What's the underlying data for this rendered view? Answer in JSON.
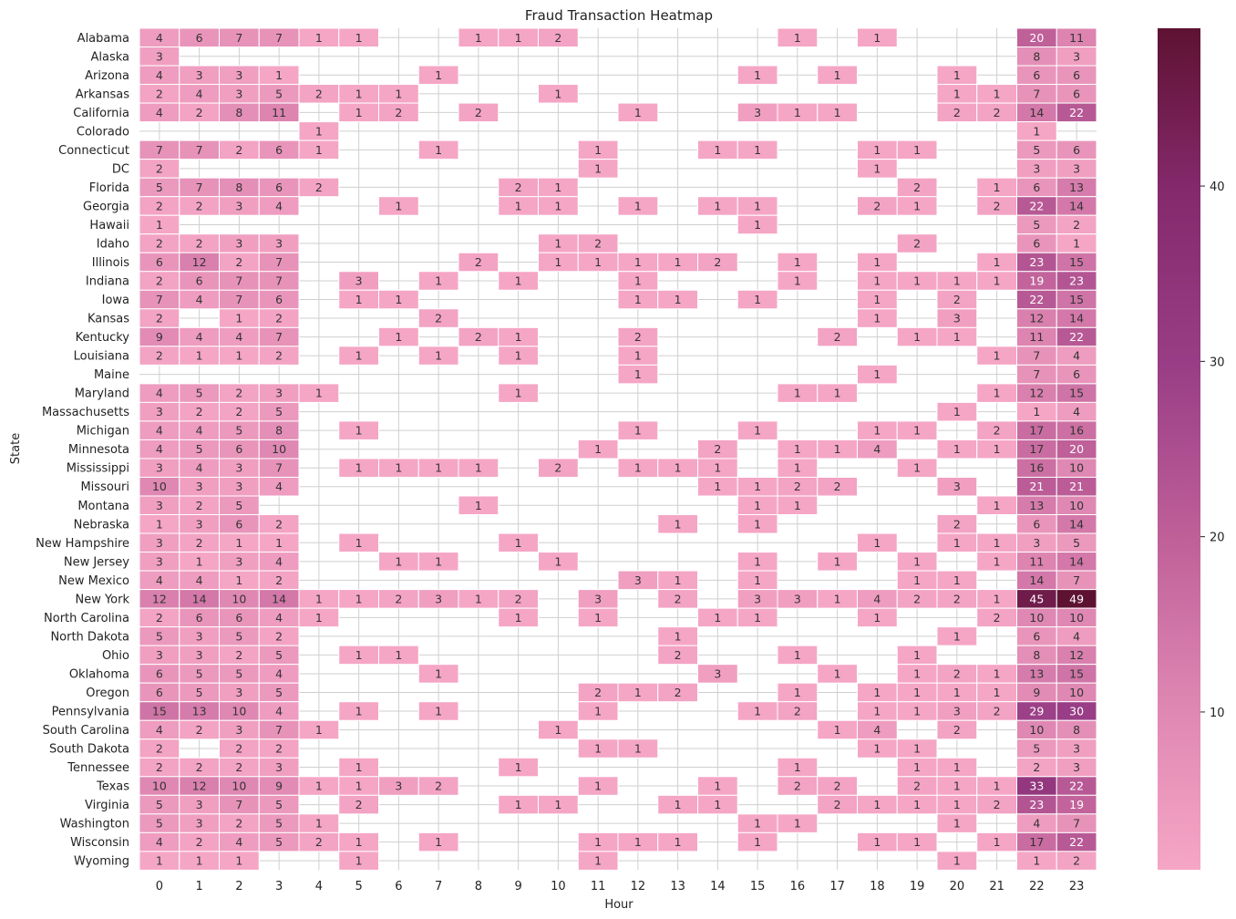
{
  "chart_data": {
    "type": "heatmap",
    "title": "Fraud Transaction Heatmap",
    "xlabel": "Hour",
    "ylabel": "State",
    "x_categories": [
      "0",
      "1",
      "2",
      "3",
      "4",
      "5",
      "6",
      "7",
      "8",
      "9",
      "10",
      "11",
      "12",
      "13",
      "14",
      "15",
      "16",
      "17",
      "18",
      "19",
      "20",
      "21",
      "22",
      "23"
    ],
    "y_categories": [
      "Alabama",
      "Alaska",
      "Arizona",
      "Arkansas",
      "California",
      "Colorado",
      "Connecticut",
      "DC",
      "Florida",
      "Georgia",
      "Hawaii",
      "Idaho",
      "Illinois",
      "Indiana",
      "Iowa",
      "Kansas",
      "Kentucky",
      "Louisiana",
      "Maine",
      "Maryland",
      "Massachusetts",
      "Michigan",
      "Minnesota",
      "Mississippi",
      "Missouri",
      "Montana",
      "Nebraska",
      "New Hampshire",
      "New Jersey",
      "New Mexico",
      "New York",
      "North Carolina",
      "North Dakota",
      "Ohio",
      "Oklahoma",
      "Oregon",
      "Pennsylvania",
      "South Carolina",
      "South Dakota",
      "Tennessee",
      "Texas",
      "Virginia",
      "Washington",
      "Wisconsin",
      "Wyoming"
    ],
    "values": [
      [
        4,
        6,
        7,
        7,
        1,
        1,
        null,
        null,
        1,
        1,
        2,
        null,
        null,
        null,
        null,
        null,
        1,
        null,
        1,
        null,
        null,
        null,
        20,
        11
      ],
      [
        3,
        null,
        null,
        null,
        null,
        null,
        null,
        null,
        null,
        null,
        null,
        null,
        null,
        null,
        null,
        null,
        null,
        null,
        null,
        null,
        null,
        null,
        8,
        3
      ],
      [
        4,
        3,
        3,
        1,
        null,
        null,
        null,
        1,
        null,
        null,
        null,
        null,
        null,
        null,
        null,
        1,
        null,
        1,
        null,
        null,
        1,
        null,
        6,
        6
      ],
      [
        2,
        4,
        3,
        5,
        2,
        1,
        1,
        null,
        null,
        null,
        1,
        null,
        null,
        null,
        null,
        null,
        null,
        null,
        null,
        null,
        1,
        1,
        7,
        6
      ],
      [
        4,
        2,
        8,
        11,
        null,
        1,
        2,
        null,
        2,
        null,
        null,
        null,
        1,
        null,
        null,
        3,
        1,
        1,
        null,
        null,
        2,
        2,
        14,
        22
      ],
      [
        null,
        null,
        null,
        null,
        1,
        null,
        null,
        null,
        null,
        null,
        null,
        null,
        null,
        null,
        null,
        null,
        null,
        null,
        null,
        null,
        null,
        null,
        1,
        null
      ],
      [
        7,
        7,
        2,
        6,
        1,
        null,
        null,
        1,
        null,
        null,
        null,
        1,
        null,
        null,
        1,
        1,
        null,
        null,
        1,
        1,
        null,
        null,
        5,
        6
      ],
      [
        2,
        null,
        null,
        null,
        null,
        null,
        null,
        null,
        null,
        null,
        null,
        1,
        null,
        null,
        null,
        null,
        null,
        null,
        1,
        null,
        null,
        null,
        3,
        3
      ],
      [
        5,
        7,
        8,
        6,
        2,
        null,
        null,
        null,
        null,
        2,
        1,
        null,
        null,
        null,
        null,
        null,
        null,
        null,
        null,
        2,
        null,
        1,
        6,
        13
      ],
      [
        2,
        2,
        3,
        4,
        null,
        null,
        1,
        null,
        null,
        1,
        1,
        null,
        1,
        null,
        1,
        1,
        null,
        null,
        2,
        1,
        null,
        2,
        22,
        14
      ],
      [
        1,
        null,
        null,
        null,
        null,
        null,
        null,
        null,
        null,
        null,
        null,
        null,
        null,
        null,
        null,
        1,
        null,
        null,
        null,
        null,
        null,
        null,
        5,
        2
      ],
      [
        2,
        2,
        3,
        3,
        null,
        null,
        null,
        null,
        null,
        null,
        1,
        2,
        null,
        null,
        null,
        null,
        null,
        null,
        null,
        2,
        null,
        null,
        6,
        1
      ],
      [
        6,
        12,
        2,
        7,
        null,
        null,
        null,
        null,
        2,
        null,
        1,
        1,
        1,
        1,
        2,
        null,
        1,
        null,
        1,
        null,
        null,
        1,
        23,
        15
      ],
      [
        2,
        6,
        7,
        7,
        null,
        3,
        null,
        1,
        null,
        1,
        null,
        null,
        1,
        null,
        null,
        null,
        1,
        null,
        1,
        1,
        1,
        1,
        19,
        23
      ],
      [
        7,
        4,
        7,
        6,
        null,
        1,
        1,
        null,
        null,
        null,
        null,
        null,
        1,
        1,
        null,
        1,
        null,
        null,
        1,
        null,
        2,
        null,
        22,
        15
      ],
      [
        2,
        null,
        1,
        2,
        null,
        null,
        null,
        2,
        null,
        null,
        null,
        null,
        null,
        null,
        null,
        null,
        null,
        null,
        1,
        null,
        3,
        null,
        12,
        14
      ],
      [
        9,
        4,
        4,
        7,
        null,
        null,
        1,
        null,
        2,
        1,
        null,
        null,
        2,
        null,
        null,
        null,
        null,
        2,
        null,
        1,
        1,
        null,
        11,
        22
      ],
      [
        2,
        1,
        1,
        2,
        null,
        1,
        null,
        1,
        null,
        1,
        null,
        null,
        1,
        null,
        null,
        null,
        null,
        null,
        null,
        null,
        null,
        1,
        7,
        4
      ],
      [
        null,
        null,
        null,
        null,
        null,
        null,
        null,
        null,
        null,
        null,
        null,
        null,
        1,
        null,
        null,
        null,
        null,
        null,
        1,
        null,
        null,
        null,
        7,
        6
      ],
      [
        4,
        5,
        2,
        3,
        1,
        null,
        null,
        null,
        null,
        1,
        null,
        null,
        null,
        null,
        null,
        null,
        1,
        1,
        null,
        null,
        null,
        1,
        12,
        15
      ],
      [
        3,
        2,
        2,
        5,
        null,
        null,
        null,
        null,
        null,
        null,
        null,
        null,
        null,
        null,
        null,
        null,
        null,
        null,
        null,
        null,
        1,
        null,
        1,
        4
      ],
      [
        4,
        4,
        5,
        8,
        null,
        1,
        null,
        null,
        null,
        null,
        null,
        null,
        1,
        null,
        null,
        1,
        null,
        null,
        1,
        1,
        null,
        2,
        17,
        16
      ],
      [
        4,
        5,
        6,
        10,
        null,
        null,
        null,
        null,
        null,
        null,
        null,
        1,
        null,
        null,
        2,
        null,
        1,
        1,
        4,
        null,
        1,
        1,
        17,
        20
      ],
      [
        3,
        4,
        3,
        7,
        null,
        1,
        1,
        1,
        1,
        null,
        2,
        null,
        1,
        1,
        1,
        null,
        1,
        null,
        null,
        1,
        null,
        null,
        16,
        10
      ],
      [
        10,
        3,
        3,
        4,
        null,
        null,
        null,
        null,
        null,
        null,
        null,
        null,
        null,
        null,
        1,
        1,
        2,
        2,
        null,
        null,
        3,
        null,
        21,
        21
      ],
      [
        3,
        2,
        5,
        null,
        null,
        null,
        null,
        null,
        1,
        null,
        null,
        null,
        null,
        null,
        null,
        1,
        1,
        null,
        null,
        null,
        null,
        1,
        13,
        10
      ],
      [
        1,
        3,
        6,
        2,
        null,
        null,
        null,
        null,
        null,
        null,
        null,
        null,
        null,
        1,
        null,
        1,
        null,
        null,
        null,
        null,
        2,
        null,
        6,
        14
      ],
      [
        3,
        2,
        1,
        1,
        null,
        1,
        null,
        null,
        null,
        1,
        null,
        null,
        null,
        null,
        null,
        null,
        null,
        null,
        1,
        null,
        1,
        1,
        3,
        5
      ],
      [
        3,
        1,
        3,
        4,
        null,
        null,
        1,
        1,
        null,
        null,
        1,
        null,
        null,
        null,
        null,
        1,
        null,
        1,
        null,
        1,
        null,
        1,
        11,
        14
      ],
      [
        4,
        4,
        1,
        2,
        null,
        null,
        null,
        null,
        null,
        null,
        null,
        null,
        3,
        1,
        null,
        1,
        null,
        null,
        null,
        1,
        1,
        null,
        14,
        7
      ],
      [
        12,
        14,
        10,
        14,
        1,
        1,
        2,
        3,
        1,
        2,
        null,
        3,
        null,
        2,
        null,
        3,
        3,
        1,
        4,
        2,
        2,
        1,
        45,
        49
      ],
      [
        2,
        6,
        6,
        4,
        1,
        null,
        null,
        null,
        null,
        1,
        null,
        1,
        null,
        null,
        1,
        1,
        null,
        null,
        1,
        null,
        null,
        2,
        10,
        10
      ],
      [
        5,
        3,
        5,
        2,
        null,
        null,
        null,
        null,
        null,
        null,
        null,
        null,
        null,
        1,
        null,
        null,
        null,
        null,
        null,
        null,
        1,
        null,
        6,
        4
      ],
      [
        3,
        3,
        2,
        5,
        null,
        1,
        1,
        null,
        null,
        null,
        null,
        null,
        null,
        2,
        null,
        null,
        1,
        null,
        null,
        1,
        null,
        null,
        8,
        12
      ],
      [
        6,
        5,
        5,
        4,
        null,
        null,
        null,
        1,
        null,
        null,
        null,
        null,
        null,
        null,
        3,
        null,
        null,
        1,
        null,
        1,
        2,
        1,
        13,
        15
      ],
      [
        6,
        5,
        3,
        5,
        null,
        null,
        null,
        null,
        null,
        null,
        null,
        2,
        1,
        2,
        null,
        null,
        1,
        null,
        1,
        1,
        1,
        1,
        9,
        10
      ],
      [
        15,
        13,
        10,
        4,
        null,
        1,
        null,
        1,
        null,
        null,
        null,
        1,
        null,
        null,
        null,
        1,
        2,
        null,
        1,
        1,
        3,
        2,
        29,
        30
      ],
      [
        4,
        2,
        3,
        7,
        1,
        null,
        null,
        null,
        null,
        null,
        1,
        null,
        null,
        null,
        null,
        null,
        null,
        1,
        4,
        null,
        2,
        null,
        10,
        8
      ],
      [
        2,
        null,
        2,
        2,
        null,
        null,
        null,
        null,
        null,
        null,
        null,
        1,
        1,
        null,
        null,
        null,
        null,
        null,
        1,
        1,
        null,
        null,
        5,
        3
      ],
      [
        2,
        2,
        2,
        3,
        null,
        1,
        null,
        null,
        null,
        1,
        null,
        null,
        null,
        null,
        null,
        null,
        1,
        null,
        null,
        1,
        1,
        null,
        2,
        3
      ],
      [
        10,
        12,
        10,
        9,
        1,
        1,
        3,
        2,
        null,
        null,
        null,
        1,
        null,
        null,
        1,
        null,
        2,
        2,
        null,
        2,
        1,
        1,
        33,
        22
      ],
      [
        5,
        3,
        7,
        5,
        null,
        2,
        null,
        null,
        null,
        1,
        1,
        null,
        null,
        1,
        1,
        null,
        null,
        2,
        1,
        1,
        1,
        2,
        23,
        19
      ],
      [
        5,
        3,
        2,
        5,
        1,
        null,
        null,
        null,
        null,
        null,
        null,
        null,
        null,
        null,
        null,
        1,
        1,
        null,
        null,
        null,
        1,
        null,
        4,
        7
      ],
      [
        4,
        2,
        4,
        5,
        2,
        1,
        null,
        1,
        null,
        null,
        null,
        1,
        1,
        1,
        null,
        1,
        null,
        null,
        1,
        1,
        null,
        1,
        17,
        22
      ],
      [
        1,
        1,
        1,
        null,
        null,
        1,
        null,
        null,
        null,
        null,
        null,
        1,
        null,
        null,
        null,
        null,
        null,
        null,
        null,
        null,
        1,
        null,
        1,
        2
      ]
    ],
    "colorbar": {
      "vmin": 1,
      "vmax": 49,
      "ticks": [
        10,
        20,
        30,
        40
      ],
      "colors": [
        "#f5a6c5",
        "#de86b2",
        "#be5f98",
        "#993d86",
        "#862a6e",
        "#5e1232"
      ]
    },
    "grid": true
  }
}
